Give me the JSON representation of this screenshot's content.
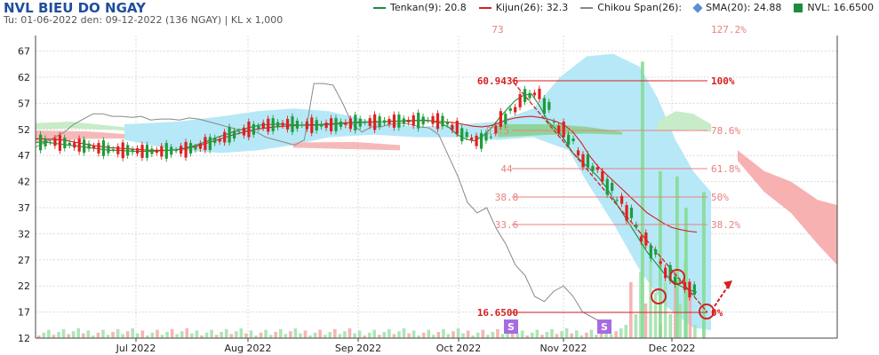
{
  "header": {
    "title": "NVL BIEU DO NGAY",
    "subtitle": "Tu: 01-06-2022 den: 09-12-2022 (136 NGAY) | KL x 1,000"
  },
  "legend": [
    {
      "id": "tenkan",
      "label": "Tenkan(9): 20.8",
      "color": "#1e8c3a",
      "kind": "line"
    },
    {
      "id": "kijun",
      "label": "Kijun(26): 32.3",
      "color": "#d42020",
      "kind": "line"
    },
    {
      "id": "chikou",
      "label": "Chikou Span(26):",
      "color": "#888888",
      "kind": "line"
    },
    {
      "id": "sma",
      "label": "SMA(20): 24.88",
      "color": "#5b8fd6",
      "kind": "dot"
    },
    {
      "id": "nvl",
      "label": "NVL: 16.6500",
      "color": "#1e8c3a",
      "kind": "box"
    }
  ],
  "chart_data": {
    "type": "candlestick",
    "ylim": [
      12,
      70
    ],
    "y_ticks": [
      "67",
      "62",
      "57",
      "52",
      "47",
      "42",
      "37",
      "32",
      "27",
      "22",
      "17",
      "12"
    ],
    "x_ticks": [
      "Jul 2022",
      "Aug 2022",
      "Sep 2022",
      "Oct 2022",
      "Nov 2022",
      "Dec 2022"
    ],
    "fibonacci": {
      "high": "60.9436",
      "low": "16.6500",
      "levels": [
        {
          "pct": "100%",
          "value": "60.9436",
          "left": "60.9436"
        },
        {
          "pct": "78.6%",
          "value": "51.5",
          "left": "51.5"
        },
        {
          "pct": "61.8%",
          "value": "44",
          "left": "44"
        },
        {
          "pct": "50%",
          "value": "38.8",
          "left": "38.8"
        },
        {
          "pct": "38.2%",
          "value": "33.6",
          "left": "33.6"
        },
        {
          "pct": "0%",
          "value": "16.6500",
          "left": "16.6500"
        }
      ],
      "clipped_labels": [
        "73",
        "127.2%"
      ]
    },
    "markers": [
      "S",
      "S"
    ],
    "series": {
      "tenkan": [
        49.5,
        49.6,
        49.4,
        49.2,
        49.0,
        48.8,
        48.6,
        48.4,
        48.2,
        48.0,
        48.0,
        47.9,
        47.8,
        47.8,
        47.8,
        47.9,
        48.0,
        48.1,
        48.4,
        48.8,
        49.3,
        49.9,
        50.5,
        51.0,
        51.6,
        52.0,
        52.4,
        52.8,
        52.9,
        53.0,
        53.0,
        52.9,
        52.8,
        52.8,
        52.8,
        52.9,
        53.0,
        53.1,
        53.3,
        53.4,
        53.4,
        53.5,
        53.5,
        53.6,
        53.6,
        53.7,
        53.7,
        53.8,
        53.6,
        53.2,
        52.4,
        51.0,
        50.2,
        49.8,
        50.6,
        52.0,
        54.0,
        55.8,
        57.5,
        58.5,
        58.8,
        56.5,
        53.5,
        52.0,
        50.0,
        47.5,
        46.0,
        44.5,
        43.0,
        41.0,
        38.5,
        36.0,
        33.5,
        31.0,
        28.5,
        26.5,
        24.5,
        23.0,
        22.0,
        21.3,
        20.8
      ],
      "kijun": [
        50.2,
        50.2,
        50.1,
        50.0,
        49.8,
        49.5,
        49.2,
        48.9,
        48.7,
        48.5,
        48.4,
        48.3,
        48.2,
        48.1,
        48.0,
        48.0,
        48.0,
        48.1,
        48.3,
        48.6,
        49.0,
        49.5,
        50.0,
        50.5,
        51.0,
        51.4,
        51.8,
        52.1,
        52.3,
        52.5,
        52.6,
        52.7,
        52.8,
        52.9,
        52.9,
        53.0,
        53.1,
        53.2,
        53.3,
        53.3,
        53.4,
        53.4,
        53.5,
        53.5,
        53.6,
        53.6,
        53.7,
        53.7,
        53.6,
        53.5,
        53.4,
        53.2,
        52.9,
        52.6,
        52.5,
        52.7,
        53.2,
        53.8,
        54.2,
        54.4,
        54.5,
        54.3,
        54.0,
        53.5,
        52.8,
        51.5,
        49.5,
        47.0,
        45.0,
        43.5,
        42.0,
        40.5,
        39.0,
        37.5,
        36.0,
        35.0,
        34.0,
        33.2,
        32.8,
        32.5,
        32.3
      ],
      "chikou": [
        48.6,
        49.5,
        50.5,
        51.5,
        53.0,
        54.0,
        55.0,
        55.0,
        54.5,
        54.5,
        54.3,
        54.5,
        53.8,
        54.0,
        54.0,
        53.8,
        54.2,
        54.0,
        53.5,
        53.0,
        52.5,
        52.0,
        51.8,
        51.5,
        50.5,
        50.0,
        49.5,
        49.0,
        50.0,
        60.8,
        60.8,
        60.5,
        57.0,
        53.0,
        51.5,
        52.5,
        52.5,
        53.0,
        53.2,
        53.0,
        52.5,
        52.3,
        51.0,
        47.0,
        43.0,
        38.0,
        36.0,
        37.0,
        33.0,
        30.0,
        26.0,
        24.0,
        20.0,
        19.0,
        21.0,
        22.0,
        20.0,
        17.0,
        16.0,
        15.0
      ]
    }
  }
}
